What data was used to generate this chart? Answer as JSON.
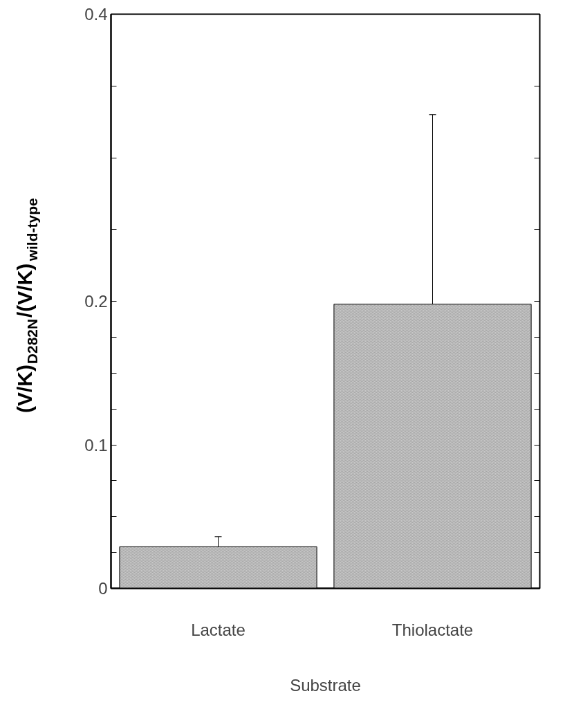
{
  "chart_data": {
    "type": "bar",
    "xlabel": "Substrate",
    "ylabel": "(V/K)$_{D282N}$/(V/K)$_{wild-type}$",
    "categories": [
      "Lactate",
      "Thiolactate"
    ],
    "values": [
      0.029,
      0.198
    ],
    "errors": [
      [
        0.022,
        0.036
      ],
      [
        0.128,
        0.33
      ]
    ],
    "color": "#c8c8c8",
    "ylim": [
      0,
      0.4
    ],
    "yticks": [
      0,
      {
        "value": 0.025,
        "label": null
      },
      {
        "value": 0.05,
        "label": null
      },
      {
        "value": 0.075,
        "label": null
      },
      0.1,
      {
        "value": 0.125,
        "label": null
      },
      {
        "value": 0.15,
        "label": null
      },
      {
        "value": 0.175,
        "label": null
      },
      0.2,
      {
        "value": 0.25,
        "label": null
      },
      {
        "value": 0.3,
        "label": null
      },
      {
        "value": 0.35,
        "label": null
      },
      0.4
    ],
    "grid": false
  }
}
